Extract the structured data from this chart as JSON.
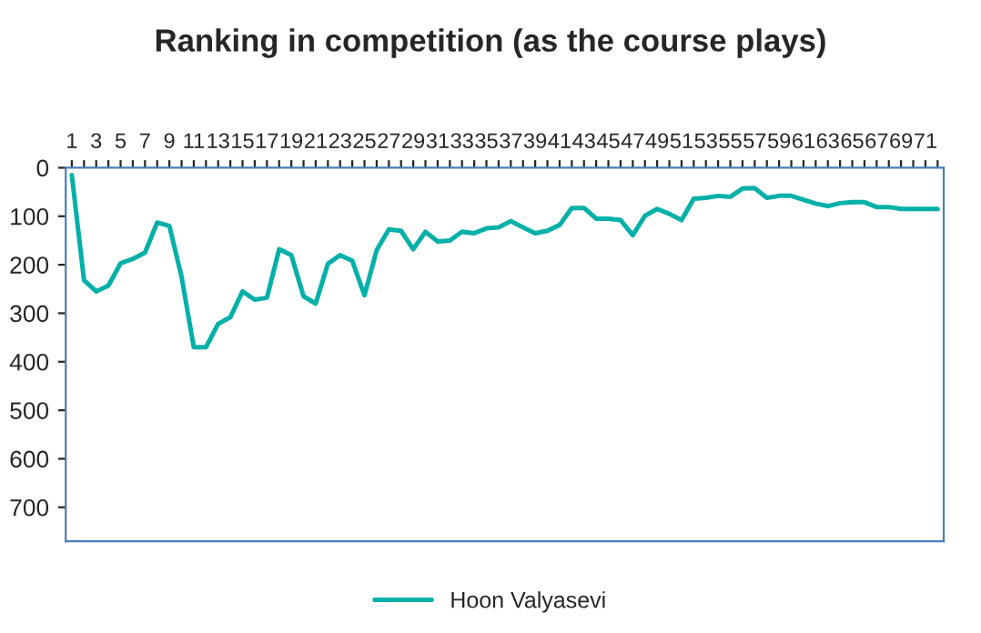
{
  "chart_data": {
    "type": "line",
    "title": "Ranking in competition (as the course plays)",
    "categories": [
      "1",
      null,
      "3",
      null,
      "5",
      null,
      "7",
      null,
      "9",
      null,
      "11",
      null,
      "13",
      null,
      "15",
      null,
      "17",
      null,
      "19",
      null,
      "21",
      null,
      "23",
      null,
      "25",
      null,
      "27",
      null,
      "29",
      null,
      "31",
      null,
      "33",
      null,
      "35",
      null,
      "37",
      null,
      "39",
      null,
      "41",
      null,
      "43",
      null,
      "45",
      null,
      "47",
      null,
      "49",
      null,
      "51",
      null,
      "53",
      null,
      "55",
      null,
      "57",
      null,
      "59",
      null,
      "61",
      null,
      "63",
      null,
      "65",
      null,
      "67",
      null,
      "69",
      null,
      "71",
      null
    ],
    "series": [
      {
        "name": "Hoon Valyasevi",
        "color": "#00b0a8",
        "values": [
          15,
          232,
          255,
          243,
          197,
          188,
          175,
          113,
          120,
          225,
          370,
          370,
          322,
          308,
          255,
          272,
          268,
          168,
          180,
          265,
          280,
          198,
          180,
          192,
          263,
          170,
          127,
          130,
          168,
          132,
          152,
          150,
          132,
          135,
          125,
          123,
          110,
          123,
          135,
          130,
          118,
          83,
          83,
          105,
          105,
          108,
          139,
          99,
          85,
          95,
          108,
          64,
          62,
          58,
          60,
          43,
          42,
          62,
          58,
          58,
          66,
          74,
          79,
          73,
          71,
          71,
          81,
          81,
          85,
          85,
          85,
          85
        ]
      }
    ],
    "ylim": [
      770,
      0
    ],
    "yticks": [
      0,
      100,
      200,
      300,
      400,
      500,
      600,
      700
    ],
    "grid": false,
    "legend": "bottom",
    "marker": "none",
    "line_style": "solid"
  }
}
